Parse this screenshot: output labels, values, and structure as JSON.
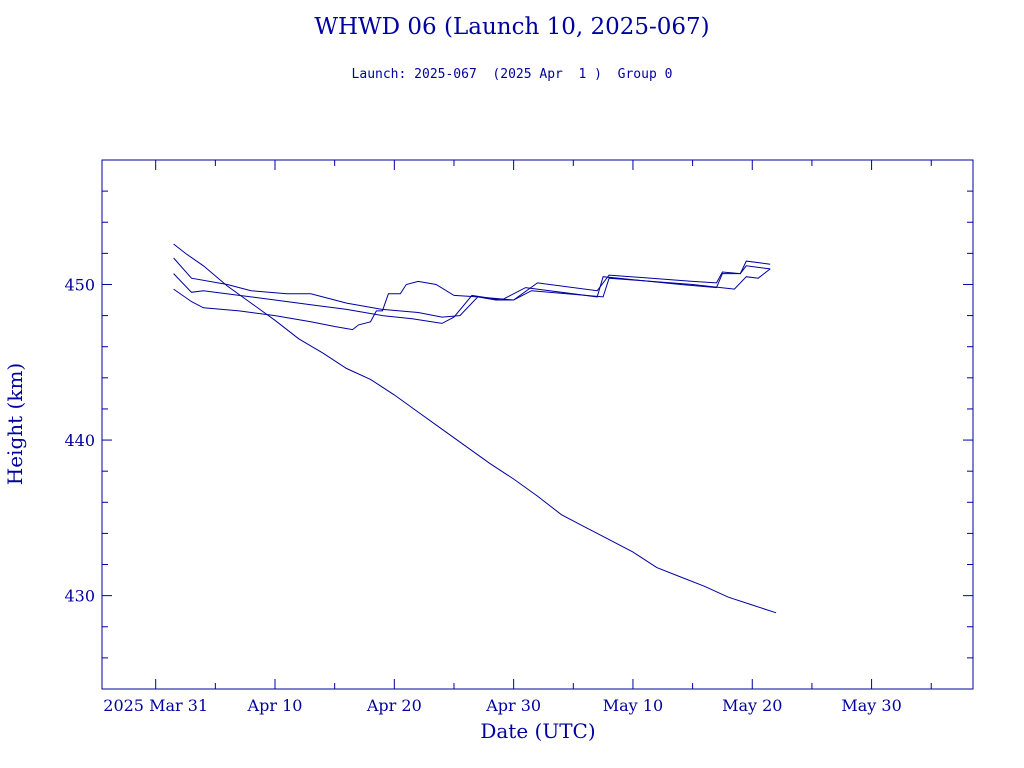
{
  "chart_data": {
    "type": "line",
    "title": "WHWD 06 (Launch 10, 2025-067)",
    "subtitle": "Launch: 2025-067  (2025 Apr  1 )  Group 0",
    "xlabel": "Date (UTC)",
    "ylabel": "Height (km)",
    "x_ticks": [
      {
        "date": "2025-03-31",
        "label": "2025 Mar 31"
      },
      {
        "date": "2025-04-10",
        "label": "Apr 10"
      },
      {
        "date": "2025-04-20",
        "label": "Apr 20"
      },
      {
        "date": "2025-04-30",
        "label": "Apr 30"
      },
      {
        "date": "2025-05-10",
        "label": "May 10"
      },
      {
        "date": "2025-05-20",
        "label": "May 20"
      },
      {
        "date": "2025-05-30",
        "label": "May 30"
      }
    ],
    "xlim": [
      "2025-03-26T12:00",
      "2025-06-07T12:00"
    ],
    "y_ticks": [
      430,
      440,
      450
    ],
    "ylim": [
      424,
      458
    ],
    "grid": false,
    "legend": "none",
    "color": "#0000a0",
    "series": [
      {
        "points": [
          [
            "2025-04-01T12:00",
            452.6
          ],
          [
            "2025-04-02T12:00",
            452.0
          ],
          [
            "2025-04-04T00:00",
            451.2
          ],
          [
            "2025-04-06T00:00",
            449.9
          ],
          [
            "2025-04-08T00:00",
            448.8
          ],
          [
            "2025-04-10T00:00",
            447.7
          ],
          [
            "2025-04-12T00:00",
            446.5
          ],
          [
            "2025-04-14T00:00",
            445.6
          ],
          [
            "2025-04-16T00:00",
            444.6
          ],
          [
            "2025-04-18T00:00",
            443.9
          ],
          [
            "2025-04-20T00:00",
            442.9
          ],
          [
            "2025-04-22T00:00",
            441.8
          ],
          [
            "2025-04-24T00:00",
            440.7
          ],
          [
            "2025-04-26T00:00",
            439.6
          ],
          [
            "2025-04-28T00:00",
            438.5
          ],
          [
            "2025-04-30T00:00",
            437.5
          ],
          [
            "2025-05-02T00:00",
            436.4
          ],
          [
            "2025-05-04T00:00",
            435.2
          ],
          [
            "2025-05-06T00:00",
            434.4
          ],
          [
            "2025-05-08T00:00",
            433.6
          ],
          [
            "2025-05-10T00:00",
            432.8
          ],
          [
            "2025-05-12T00:00",
            431.8
          ],
          [
            "2025-05-14T00:00",
            431.2
          ],
          [
            "2025-05-16T00:00",
            430.6
          ],
          [
            "2025-05-18T00:00",
            429.9
          ],
          [
            "2025-05-20T00:00",
            429.4
          ],
          [
            "2025-05-22T00:00",
            428.9
          ]
        ]
      },
      {
        "points": [
          [
            "2025-04-01T12:00",
            451.7
          ],
          [
            "2025-04-03T00:00",
            450.4
          ],
          [
            "2025-04-06T00:00",
            450.0
          ],
          [
            "2025-04-08T00:00",
            449.6
          ],
          [
            "2025-04-11T00:00",
            449.4
          ],
          [
            "2025-04-13T00:00",
            449.4
          ],
          [
            "2025-04-16T00:00",
            448.8
          ],
          [
            "2025-04-19T00:00",
            448.4
          ],
          [
            "2025-04-22T00:00",
            448.2
          ],
          [
            "2025-04-24T00:00",
            447.9
          ],
          [
            "2025-04-25T12:00",
            448.0
          ],
          [
            "2025-04-27T00:00",
            449.2
          ],
          [
            "2025-04-30T00:00",
            449.0
          ],
          [
            "2025-05-02T00:00",
            450.1
          ],
          [
            "2025-05-07T00:00",
            449.6
          ],
          [
            "2025-05-08T00:00",
            450.6
          ],
          [
            "2025-05-15T00:00",
            450.2
          ],
          [
            "2025-05-17T00:00",
            450.1
          ],
          [
            "2025-05-17T12:00",
            450.8
          ],
          [
            "2025-05-19T00:00",
            450.7
          ],
          [
            "2025-05-19T12:00",
            451.5
          ],
          [
            "2025-05-21T12:00",
            451.3
          ]
        ]
      },
      {
        "points": [
          [
            "2025-04-01T12:00",
            450.7
          ],
          [
            "2025-04-03T00:00",
            449.5
          ],
          [
            "2025-04-04T00:00",
            449.6
          ],
          [
            "2025-04-07T00:00",
            449.3
          ],
          [
            "2025-04-10T00:00",
            449.0
          ],
          [
            "2025-04-13T00:00",
            448.7
          ],
          [
            "2025-04-16T00:00",
            448.4
          ],
          [
            "2025-04-19T00:00",
            448.0
          ],
          [
            "2025-04-21T12:00",
            447.8
          ],
          [
            "2025-04-24T00:00",
            447.5
          ],
          [
            "2025-04-25T00:00",
            447.9
          ],
          [
            "2025-04-26T12:00",
            449.3
          ],
          [
            "2025-04-29T00:00",
            449.0
          ],
          [
            "2025-05-01T00:00",
            449.8
          ],
          [
            "2025-05-07T00:00",
            449.2
          ],
          [
            "2025-05-07T12:00",
            450.5
          ],
          [
            "2025-05-14T00:00",
            450.0
          ],
          [
            "2025-05-17T00:00",
            449.8
          ],
          [
            "2025-05-17T12:00",
            450.7
          ],
          [
            "2025-05-19T00:00",
            450.7
          ],
          [
            "2025-05-19T12:00",
            451.2
          ],
          [
            "2025-05-21T12:00",
            451.0
          ]
        ]
      },
      {
        "points": [
          [
            "2025-04-01T12:00",
            449.7
          ],
          [
            "2025-04-03T00:00",
            448.9
          ],
          [
            "2025-04-04T00:00",
            448.5
          ],
          [
            "2025-04-07T00:00",
            448.3
          ],
          [
            "2025-04-10T00:00",
            448.0
          ],
          [
            "2025-04-13T00:00",
            447.6
          ],
          [
            "2025-04-15T00:00",
            447.3
          ],
          [
            "2025-04-16T12:00",
            447.1
          ],
          [
            "2025-04-17T00:00",
            447.4
          ],
          [
            "2025-04-18T00:00",
            447.6
          ],
          [
            "2025-04-18T12:00",
            448.3
          ],
          [
            "2025-04-19T00:00",
            448.3
          ],
          [
            "2025-04-19T12:00",
            449.4
          ],
          [
            "2025-04-20T12:00",
            449.4
          ],
          [
            "2025-04-21T00:00",
            450.0
          ],
          [
            "2025-04-22T00:00",
            450.2
          ],
          [
            "2025-04-23T12:00",
            450.0
          ],
          [
            "2025-04-25T00:00",
            449.3
          ],
          [
            "2025-04-27T00:00",
            449.2
          ],
          [
            "2025-04-28T12:00",
            449.0
          ],
          [
            "2025-04-30T00:00",
            449.0
          ],
          [
            "2025-05-01T12:00",
            449.6
          ],
          [
            "2025-05-07T12:00",
            449.2
          ],
          [
            "2025-05-08T00:00",
            450.4
          ],
          [
            "2025-05-15T00:00",
            450.0
          ],
          [
            "2025-05-18T12:00",
            449.7
          ],
          [
            "2025-05-19T12:00",
            450.5
          ],
          [
            "2025-05-20T12:00",
            450.4
          ],
          [
            "2025-05-21T12:00",
            451.0
          ]
        ]
      }
    ]
  }
}
